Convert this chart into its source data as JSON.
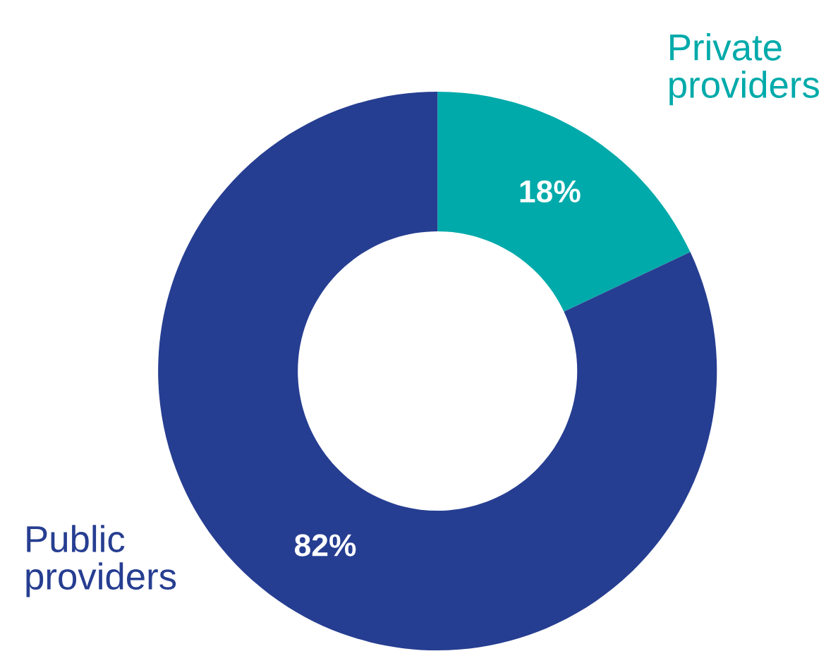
{
  "chart_data": {
    "type": "donut",
    "categories": [
      "Private providers",
      "Public providers"
    ],
    "values": [
      18,
      82
    ],
    "colors": [
      "#00aaaa",
      "#263e91"
    ],
    "value_labels": [
      "18%",
      "82%"
    ],
    "legend": false
  }
}
